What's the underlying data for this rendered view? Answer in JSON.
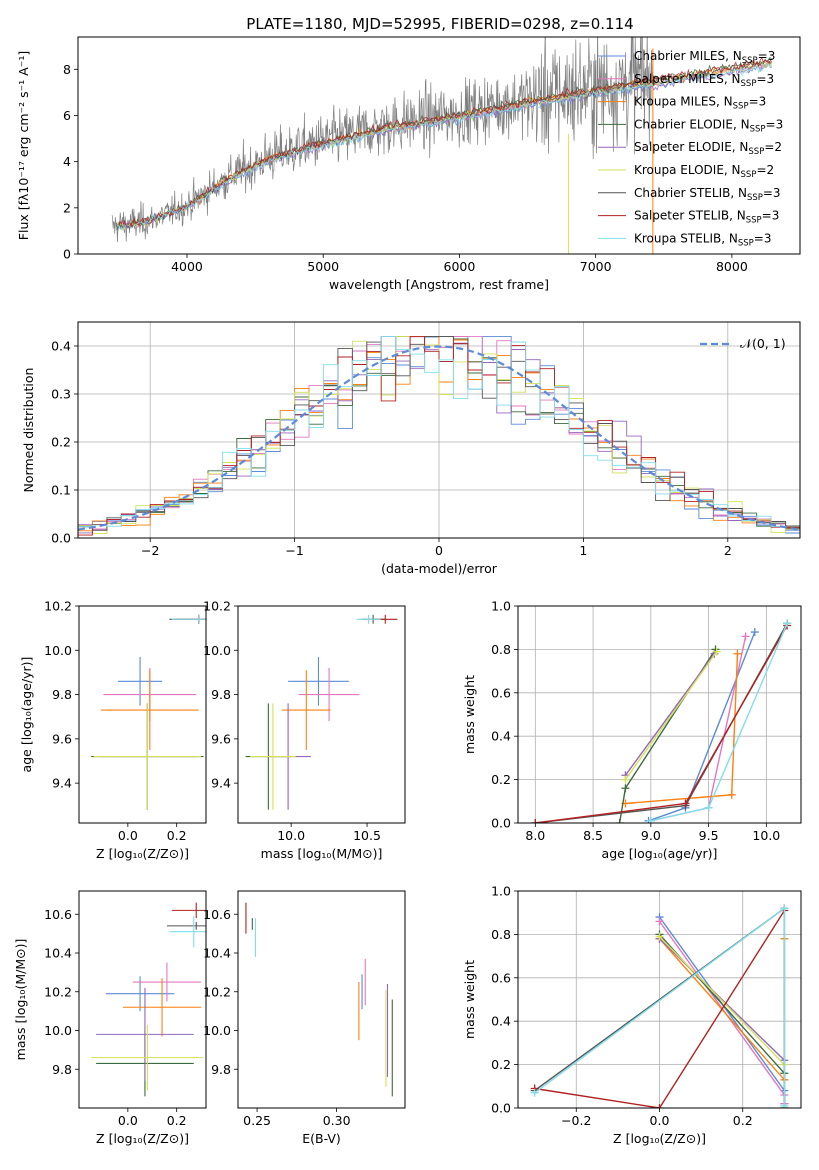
{
  "figure_title": "PLATE=1180, MJD=52995, FIBERID=0298, z=0.114",
  "palette": {
    "Chabrier MILES": "#5b8bd9",
    "Salpeter MILES": "#e377c2",
    "Kroupa MILES": "#ff7f0e",
    "Chabrier ELODIE": "#3d6b3d",
    "Salpeter ELODIE": "#9467bd",
    "Kroupa ELODIE": "#d4e157",
    "Chabrier STELIB": "#555555",
    "Salpeter STELIB": "#b22222",
    "Kroupa STELIB": "#80deea",
    "data": "#7f7f7f",
    "normal": "#5b8bd9"
  },
  "chart_data": [
    {
      "id": "spectrum",
      "type": "line",
      "title": "PLATE=1180, MJD=52995, FIBERID=0298, z=0.114",
      "xlabel": "wavelength [Angstrom, rest frame]",
      "ylabel": "Flux [fλ10⁻¹⁷ erg cm⁻² s⁻¹ A⁻¹]",
      "xlim": [
        3200,
        8500
      ],
      "ylim": [
        0,
        9.4
      ],
      "xticks": [
        4000,
        5000,
        6000,
        7000,
        8000
      ],
      "yticks": [
        0,
        2,
        4,
        6,
        8
      ],
      "legend_position": "upper-right",
      "legend": [
        {
          "label": "Chabrier MILES, N",
          "sub": "SSP",
          "tail": "=3"
        },
        {
          "label": "Salpeter MILES, N",
          "sub": "SSP",
          "tail": "=3"
        },
        {
          "label": "Kroupa MILES, N",
          "sub": "SSP",
          "tail": "=3"
        },
        {
          "label": "Chabrier ELODIE, N",
          "sub": "SSP",
          "tail": "=3"
        },
        {
          "label": "Salpeter ELODIE, N",
          "sub": "SSP",
          "tail": "=2"
        },
        {
          "label": "Kroupa ELODIE, N",
          "sub": "SSP",
          "tail": "=2"
        },
        {
          "label": "Chabrier STELIB, N",
          "sub": "SSP",
          "tail": "=3"
        },
        {
          "label": "Salpeter STELIB, N",
          "sub": "SSP",
          "tail": "=3"
        },
        {
          "label": "Kroupa STELIB, N",
          "sub": "SSP",
          "tail": "=3"
        }
      ],
      "continuum": [
        [
          3450,
          1.2
        ],
        [
          3700,
          1.4
        ],
        [
          4000,
          2.1
        ],
        [
          4300,
          3.3
        ],
        [
          4600,
          4.2
        ],
        [
          5000,
          4.9
        ],
        [
          5500,
          5.6
        ],
        [
          6000,
          6.1
        ],
        [
          6500,
          6.7
        ],
        [
          7000,
          7.2
        ],
        [
          7400,
          7.6
        ],
        [
          8000,
          8.2
        ],
        [
          8300,
          8.5
        ]
      ]
    },
    {
      "id": "residuals",
      "type": "histogram",
      "xlabel": "(data-model)/error",
      "ylabel": "Normed distribution",
      "xlim": [
        -2.5,
        2.5
      ],
      "ylim": [
        0,
        0.45
      ],
      "xticks": [
        -2,
        -1,
        0,
        1,
        2
      ],
      "yticks": [
        0.0,
        0.1,
        0.2,
        0.3,
        0.4
      ],
      "grid": true,
      "legend": "𝒩(0, 1)",
      "legend_position": "upper-right",
      "normal": {
        "mean": 0,
        "sigma": 1
      }
    },
    {
      "id": "age-vs-Z",
      "type": "errorbar",
      "xlabel": "Z [log₁₀(Z/Z⊙)]",
      "ylabel": "age  [log₁₀(age/yr)]",
      "xlim": [
        -0.2,
        0.32
      ],
      "ylim": [
        9.22,
        10.2
      ],
      "xticks": [
        0.0,
        0.2
      ],
      "yticks": [
        9.4,
        9.6,
        9.8,
        10.0,
        10.2
      ],
      "points": [
        {
          "model": "Chabrier MILES",
          "x": 0.05,
          "y": 9.86,
          "xerr": 0.09,
          "yerr": 0.11
        },
        {
          "model": "Salpeter MILES",
          "x": 0.09,
          "y": 9.8,
          "xerr": 0.19,
          "yerr": 0.12
        },
        {
          "model": "Kroupa MILES",
          "x": 0.09,
          "y": 9.73,
          "xerr": 0.2,
          "yerr": 0.18
        },
        {
          "model": "Chabrier ELODIE",
          "x": 0.08,
          "y": 9.52,
          "xerr": 0.23,
          "yerr": 0.24
        },
        {
          "model": "Salpeter ELODIE",
          "x": 0.08,
          "y": 9.52,
          "xerr": 0.2,
          "yerr": 0.24
        },
        {
          "model": "Kroupa ELODIE",
          "x": 0.08,
          "y": 9.52,
          "xerr": 0.22,
          "yerr": 0.24
        },
        {
          "model": "Chabrier STELIB",
          "x": 0.29,
          "y": 10.14,
          "xerr": 0.12,
          "yerr": 0.02
        },
        {
          "model": "Salpeter STELIB",
          "x": 0.29,
          "y": 10.14,
          "xerr": 0.1,
          "yerr": 0.02
        },
        {
          "model": "Kroupa STELIB",
          "x": 0.29,
          "y": 10.14,
          "xerr": 0.11,
          "yerr": 0.02
        }
      ]
    },
    {
      "id": "age-vs-mass",
      "type": "errorbar",
      "xlabel": "mass [log₁₀(M/M⊙)]",
      "ylabel": "",
      "xlim": [
        9.65,
        10.75
      ],
      "ylim": [
        9.22,
        10.2
      ],
      "xticks": [
        10.0,
        10.5
      ],
      "yticks": [
        9.4,
        9.6,
        9.8,
        10.0,
        10.2
      ],
      "points": [
        {
          "model": "Chabrier MILES",
          "x": 10.18,
          "y": 9.86,
          "xerr": 0.2,
          "yerr": 0.11
        },
        {
          "model": "Salpeter MILES",
          "x": 10.25,
          "y": 9.8,
          "xerr": 0.2,
          "yerr": 0.12
        },
        {
          "model": "Kroupa MILES",
          "x": 10.1,
          "y": 9.73,
          "xerr": 0.16,
          "yerr": 0.18
        },
        {
          "model": "Chabrier ELODIE",
          "x": 9.85,
          "y": 9.52,
          "xerr": 0.15,
          "yerr": 0.24
        },
        {
          "model": "Salpeter ELODIE",
          "x": 9.98,
          "y": 9.52,
          "xerr": 0.15,
          "yerr": 0.24
        },
        {
          "model": "Kroupa ELODIE",
          "x": 9.88,
          "y": 9.52,
          "xerr": 0.15,
          "yerr": 0.24
        },
        {
          "model": "Chabrier STELIB",
          "x": 10.54,
          "y": 10.14,
          "xerr": 0.08,
          "yerr": 0.02
        },
        {
          "model": "Salpeter STELIB",
          "x": 10.62,
          "y": 10.14,
          "xerr": 0.08,
          "yerr": 0.02
        },
        {
          "model": "Kroupa STELIB",
          "x": 10.51,
          "y": 10.14,
          "xerr": 0.08,
          "yerr": 0.02
        }
      ]
    },
    {
      "id": "weight-vs-age",
      "type": "line",
      "xlabel": "age  [log₁₀(age/yr)]",
      "ylabel": "mass weight",
      "xlim": [
        7.85,
        10.3
      ],
      "ylim": [
        0,
        1.0
      ],
      "xticks": [
        8.0,
        8.5,
        9.0,
        9.5,
        10.0
      ],
      "yticks": [
        0.0,
        0.2,
        0.4,
        0.6,
        0.8,
        1.0
      ],
      "grid": true,
      "series": [
        {
          "model": "Chabrier MILES",
          "x": [
            8.98,
            9.3,
            9.9
          ],
          "y": [
            0.01,
            0.07,
            0.88
          ]
        },
        {
          "model": "Salpeter MILES",
          "x": [
            9.0,
            9.5,
            9.82
          ],
          "y": [
            0.01,
            0.07,
            0.86
          ]
        },
        {
          "model": "Kroupa MILES",
          "x": [
            8.78,
            9.7,
            9.75
          ],
          "y": [
            0.09,
            0.13,
            0.78
          ]
        },
        {
          "model": "Chabrier ELODIE",
          "x": [
            8.73,
            8.78,
            9.56
          ],
          "y": [
            0.0,
            0.16,
            0.8
          ]
        },
        {
          "model": "Salpeter ELODIE",
          "x": [
            8.78,
            9.55
          ],
          "y": [
            0.22,
            0.78
          ]
        },
        {
          "model": "Kroupa ELODIE",
          "x": [
            8.78,
            9.57
          ],
          "y": [
            0.2,
            0.79
          ]
        },
        {
          "model": "Chabrier STELIB",
          "x": [
            8.0,
            9.3,
            10.18
          ],
          "y": [
            0.0,
            0.08,
            0.92
          ]
        },
        {
          "model": "Salpeter STELIB",
          "x": [
            8.0,
            9.3,
            10.18
          ],
          "y": [
            0.0,
            0.09,
            0.91
          ]
        },
        {
          "model": "Kroupa STELIB",
          "x": [
            9.0,
            9.5,
            10.18
          ],
          "y": [
            0.01,
            0.07,
            0.92
          ]
        }
      ]
    },
    {
      "id": "mass-vs-Z",
      "type": "errorbar",
      "xlabel": "Z [log₁₀(Z/Z⊙)]",
      "ylabel": "mass [log₁₀(M/M⊙)]",
      "xlim": [
        -0.2,
        0.32
      ],
      "ylim": [
        9.6,
        10.72
      ],
      "xticks": [
        0.0,
        0.2
      ],
      "yticks": [
        9.8,
        10.0,
        10.2,
        10.4,
        10.6
      ],
      "points": [
        {
          "model": "Chabrier MILES",
          "x": 0.05,
          "y": 10.19,
          "xerr": 0.14,
          "yerr": 0.09
        },
        {
          "model": "Salpeter MILES",
          "x": 0.16,
          "y": 10.25,
          "xerr": 0.14,
          "yerr": 0.1
        },
        {
          "model": "Kroupa MILES",
          "x": 0.14,
          "y": 10.12,
          "xerr": 0.16,
          "yerr": 0.15
        },
        {
          "model": "Chabrier ELODIE",
          "x": 0.07,
          "y": 9.83,
          "xerr": 0.2,
          "yerr": 0.17
        },
        {
          "model": "Salpeter ELODIE",
          "x": 0.07,
          "y": 9.98,
          "xerr": 0.2,
          "yerr": 0.24
        },
        {
          "model": "Kroupa ELODIE",
          "x": 0.08,
          "y": 9.86,
          "xerr": 0.23,
          "yerr": 0.17
        },
        {
          "model": "Chabrier STELIB",
          "x": 0.28,
          "y": 10.54,
          "xerr": 0.12,
          "yerr": 0.02
        },
        {
          "model": "Salpeter STELIB",
          "x": 0.28,
          "y": 10.62,
          "xerr": 0.1,
          "yerr": 0.04
        },
        {
          "model": "Kroupa STELIB",
          "x": 0.27,
          "y": 10.51,
          "xerr": 0.1,
          "yerr": 0.08
        }
      ]
    },
    {
      "id": "mass-vs-EBV",
      "type": "errorbar",
      "xlabel": "E(B-V)",
      "ylabel": "",
      "xlim": [
        0.238,
        0.343
      ],
      "ylim": [
        9.6,
        10.72
      ],
      "xticks": [
        0.25,
        0.3
      ],
      "yticks": [
        9.8,
        10.0,
        10.2,
        10.4,
        10.6
      ],
      "points": [
        {
          "model": "Chabrier MILES",
          "x": 0.316,
          "y": 10.2,
          "xerr": 0,
          "yerr": 0.09
        },
        {
          "model": "Salpeter MILES",
          "x": 0.318,
          "y": 10.25,
          "xerr": 0,
          "yerr": 0.12
        },
        {
          "model": "Kroupa MILES",
          "x": 0.314,
          "y": 10.1,
          "xerr": 0,
          "yerr": 0.15
        },
        {
          "model": "Chabrier ELODIE",
          "x": 0.335,
          "y": 9.91,
          "xerr": 0,
          "yerr": 0.25
        },
        {
          "model": "Salpeter ELODIE",
          "x": 0.332,
          "y": 10.0,
          "xerr": 0,
          "yerr": 0.24
        },
        {
          "model": "Kroupa ELODIE",
          "x": 0.331,
          "y": 9.96,
          "xerr": 0,
          "yerr": 0.25
        },
        {
          "model": "Chabrier STELIB",
          "x": 0.247,
          "y": 10.55,
          "xerr": 0,
          "yerr": 0.03
        },
        {
          "model": "Salpeter STELIB",
          "x": 0.243,
          "y": 10.58,
          "xerr": 0,
          "yerr": 0.08
        },
        {
          "model": "Kroupa STELIB",
          "x": 0.249,
          "y": 10.48,
          "xerr": 0,
          "yerr": 0.1
        }
      ]
    },
    {
      "id": "weight-vs-Z",
      "type": "line",
      "xlabel": "Z [log₁₀(Z/Z⊙)]",
      "ylabel": "mass weight",
      "xlim": [
        -0.34,
        0.34
      ],
      "ylim": [
        0,
        1.0
      ],
      "xticks": [
        -0.2,
        0.0,
        0.2
      ],
      "yticks": [
        0.0,
        0.2,
        0.4,
        0.6,
        0.8,
        1.0
      ],
      "grid": true,
      "series": [
        {
          "model": "Chabrier MILES",
          "x": [
            0.0,
            0.3,
            0.3
          ],
          "y": [
            0.88,
            0.08,
            0.02
          ]
        },
        {
          "model": "Salpeter MILES",
          "x": [
            0.0,
            0.3,
            0.3
          ],
          "y": [
            0.86,
            0.06,
            0.02
          ]
        },
        {
          "model": "Kroupa MILES",
          "x": [
            0.0,
            0.3,
            0.3
          ],
          "y": [
            0.78,
            0.13,
            0.78
          ]
        },
        {
          "model": "Chabrier ELODIE",
          "x": [
            0.0,
            0.3,
            0.3
          ],
          "y": [
            0.8,
            0.16,
            0.0
          ]
        },
        {
          "model": "Salpeter ELODIE",
          "x": [
            0.0,
            0.3
          ],
          "y": [
            0.78,
            0.22
          ]
        },
        {
          "model": "Kroupa ELODIE",
          "x": [
            0.0,
            0.3
          ],
          "y": [
            0.79,
            0.2
          ]
        },
        {
          "model": "Chabrier STELIB",
          "x": [
            -0.3,
            0.3,
            0.3
          ],
          "y": [
            0.08,
            0.92,
            0.0
          ]
        },
        {
          "model": "Salpeter STELIB",
          "x": [
            -0.3,
            0.0,
            0.3
          ],
          "y": [
            0.09,
            0.0,
            0.91
          ]
        },
        {
          "model": "Kroupa STELIB",
          "x": [
            -0.3,
            0.3,
            0.3
          ],
          "y": [
            0.07,
            0.92,
            0.01
          ]
        }
      ]
    }
  ]
}
